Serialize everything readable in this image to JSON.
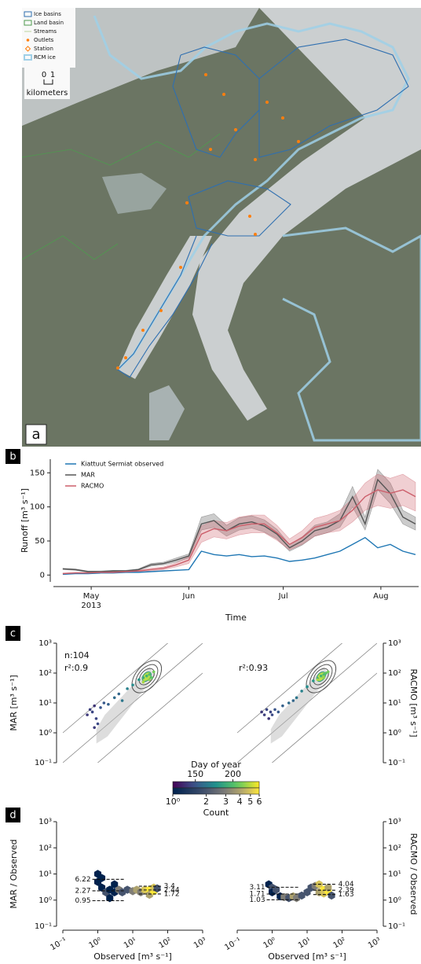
{
  "panel_labels": [
    "a",
    "b",
    "c",
    "d"
  ],
  "map": {
    "legend": [
      "Ice basins",
      "Land basin",
      "Streams",
      "Outlets",
      "Station",
      "RCM ice"
    ],
    "scale_bar": {
      "ticks": [
        "0",
        "1"
      ],
      "unit": "kilometers"
    }
  },
  "chart_data": [
    {
      "type": "line",
      "ylabel": "Runoff [m³ s⁻¹]",
      "xlabel": "Time",
      "legend": "upper left",
      "x": [
        112,
        116,
        120,
        124,
        128,
        132,
        136,
        140,
        144,
        148,
        152,
        156,
        160,
        164,
        168,
        172,
        176,
        180,
        184,
        188,
        192,
        196,
        200,
        204,
        208,
        212,
        216,
        220,
        224
      ],
      "xlim": [
        109,
        225
      ],
      "xticks": [
        {
          "value": 121,
          "label": "May"
        },
        {
          "value": 152,
          "label": "Jun"
        },
        {
          "value": 182,
          "label": "Jul"
        },
        {
          "value": 213,
          "label": "Aug"
        }
      ],
      "xtick_sublabel": "2013",
      "ylim": [
        -10,
        170
      ],
      "yticks": [
        0,
        50,
        100,
        150
      ],
      "series": [
        {
          "name": "Kiattuut Sermiat observed",
          "color": "#1f77b4",
          "values": [
            1,
            2,
            2,
            3,
            3,
            4,
            4,
            5,
            6,
            7,
            8,
            35,
            30,
            28,
            30,
            27,
            28,
            25,
            20,
            22,
            25,
            30,
            35,
            45,
            55,
            40,
            45,
            35,
            30
          ]
        },
        {
          "name": "MAR",
          "color": "#555555",
          "values": [
            9,
            8,
            5,
            5,
            6,
            6,
            8,
            15,
            17,
            22,
            28,
            75,
            80,
            65,
            75,
            78,
            72,
            60,
            40,
            50,
            65,
            70,
            80,
            115,
            75,
            140,
            120,
            85,
            75
          ],
          "upper": [
            10,
            9,
            6,
            6,
            7,
            7,
            9,
            17,
            19,
            25,
            31,
            85,
            90,
            73,
            84,
            87,
            81,
            67,
            45,
            56,
            73,
            78,
            90,
            130,
            85,
            155,
            135,
            95,
            85
          ],
          "lower": [
            8,
            7,
            4,
            4,
            5,
            5,
            7,
            13,
            15,
            19,
            25,
            66,
            70,
            57,
            66,
            69,
            63,
            53,
            35,
            44,
            57,
            62,
            70,
            100,
            66,
            125,
            105,
            75,
            66
          ]
        },
        {
          "name": "RACMO",
          "color": "#cc5f6b",
          "values": [
            2,
            3,
            3,
            4,
            4,
            5,
            6,
            8,
            10,
            15,
            22,
            60,
            68,
            65,
            72,
            75,
            75,
            62,
            45,
            55,
            70,
            75,
            80,
            95,
            115,
            125,
            120,
            125,
            115
          ],
          "upper": [
            3,
            4,
            4,
            5,
            5,
            6,
            7,
            10,
            12,
            18,
            27,
            72,
            80,
            77,
            85,
            88,
            88,
            73,
            53,
            65,
            83,
            88,
            95,
            112,
            135,
            148,
            142,
            148,
            136
          ],
          "lower": [
            1,
            2,
            2,
            3,
            3,
            4,
            5,
            6,
            8,
            12,
            17,
            48,
            56,
            53,
            59,
            62,
            62,
            51,
            37,
            45,
            57,
            62,
            65,
            78,
            95,
            102,
            98,
            102,
            94
          ]
        }
      ]
    },
    {
      "type": "scatter",
      "log": true,
      "yaxis": "left",
      "ylabel": "MAR [m³ s⁻¹]",
      "annotations": [
        "n:104",
        "r²:0.9"
      ],
      "colorbar": 0,
      "xlim": [
        0.1,
        1000
      ],
      "ylim": [
        0.1,
        1000
      ],
      "ratio_lines": [
        0.1,
        1,
        10
      ],
      "yticks": [
        {
          "value": 0.1,
          "label": "10⁻¹"
        },
        {
          "value": 1,
          "label": "10⁰"
        },
        {
          "value": 10,
          "label": "10¹"
        },
        {
          "value": 100,
          "label": "10²"
        },
        {
          "value": 1000,
          "label": "10³"
        }
      ],
      "x": [
        0.5,
        0.6,
        0.7,
        0.8,
        0.9,
        1.0,
        0.8,
        1.2,
        1.5,
        2,
        3,
        4,
        5,
        7,
        10,
        15,
        20,
        25,
        30,
        35,
        40,
        30,
        20
      ],
      "y": [
        4,
        6,
        5,
        8,
        3,
        2,
        1.5,
        7,
        10,
        9,
        15,
        20,
        12,
        30,
        40,
        60,
        70,
        80,
        90,
        70,
        110,
        60,
        50
      ],
      "day": [
        140,
        142,
        145,
        138,
        144,
        146,
        141,
        150,
        152,
        155,
        160,
        158,
        165,
        170,
        175,
        180,
        190,
        195,
        200,
        205,
        210,
        215,
        220
      ]
    },
    {
      "type": "scatter",
      "log": true,
      "yaxis": "right",
      "ylabel": "RACMO [m³ s⁻¹]",
      "annotations": [
        "r²:0.93"
      ],
      "colorbar": 0,
      "xlim": [
        0.1,
        1000
      ],
      "ylim": [
        0.1,
        1000
      ],
      "ratio_lines": [
        0.1,
        1,
        10
      ],
      "yticks": [
        {
          "value": 0.1,
          "label": "10⁻¹"
        },
        {
          "value": 1,
          "label": "10⁰"
        },
        {
          "value": 10,
          "label": "10¹"
        },
        {
          "value": 100,
          "label": "10²"
        },
        {
          "value": 1000,
          "label": "10³"
        }
      ],
      "x": [
        0.5,
        0.6,
        0.7,
        0.8,
        0.9,
        1.0,
        1.2,
        1.5,
        2,
        3,
        4,
        5,
        7,
        10,
        15,
        20,
        25,
        30,
        35,
        40,
        30,
        20
      ],
      "y": [
        5,
        4,
        6,
        3,
        5,
        4,
        6,
        5,
        8,
        10,
        12,
        15,
        25,
        35,
        55,
        65,
        80,
        90,
        100,
        110,
        70,
        60
      ],
      "day": [
        140,
        142,
        145,
        138,
        144,
        146,
        150,
        152,
        155,
        160,
        158,
        165,
        170,
        175,
        180,
        190,
        195,
        200,
        205,
        210,
        215,
        220
      ]
    },
    {
      "type": "hexbin",
      "log": true,
      "yaxis": "left",
      "ylabel": "MAR / Observed",
      "xlabel": "Observed [m³ s⁻¹]",
      "colorbar": 1,
      "xlim": [
        0.1,
        1000
      ],
      "ylim": [
        0.1,
        1000
      ],
      "xticks": [
        {
          "value": 0.1,
          "label": "10⁻¹"
        },
        {
          "value": 1,
          "label": "10⁰"
        },
        {
          "value": 10,
          "label": "10¹"
        },
        {
          "value": 100,
          "label": "10²"
        },
        {
          "value": 1000,
          "label": "10³"
        }
      ],
      "yticks": [
        {
          "value": 0.1,
          "label": "10⁻¹"
        },
        {
          "value": 1,
          "label": "10⁰"
        },
        {
          "value": 10,
          "label": "10¹"
        },
        {
          "value": 100,
          "label": "10²"
        },
        {
          "value": 1000,
          "label": "10³"
        }
      ],
      "x": [
        1,
        1,
        1.3,
        1.3,
        1.7,
        2.2,
        2.2,
        3,
        3,
        4,
        5,
        7,
        10,
        13,
        17,
        22,
        30,
        30,
        40,
        40,
        50
      ],
      "y": [
        10,
        5,
        7,
        3,
        2,
        1.2,
        2.5,
        2,
        4,
        2.5,
        2,
        2.5,
        2.2,
        2.5,
        2,
        2.5,
        2.5,
        1.6,
        2.2,
        3,
        2.8
      ],
      "counts": [
        1,
        1,
        1,
        1,
        2,
        1,
        1,
        1,
        1,
        3,
        2,
        2,
        3,
        4,
        3,
        5,
        6,
        4,
        6,
        5,
        2
      ],
      "quantile_lines": [
        {
          "xlim": [
            0.7,
            6
          ],
          "label_side": "left",
          "values": [
            6.22,
            2.27,
            0.95
          ]
        },
        {
          "xlim": [
            15,
            70
          ],
          "label_side": "right",
          "values": [
            3.4,
            2.44,
            1.72
          ]
        }
      ]
    },
    {
      "type": "hexbin",
      "log": true,
      "yaxis": "right",
      "ylabel": "RACMO / Observed",
      "xlabel": "Observed [m³ s⁻¹]",
      "colorbar": 1,
      "xlim": [
        0.1,
        1000
      ],
      "ylim": [
        0.1,
        1000
      ],
      "xticks": [
        {
          "value": 0.1,
          "label": "10⁻¹"
        },
        {
          "value": 1,
          "label": "10⁰"
        },
        {
          "value": 10,
          "label": "10¹"
        },
        {
          "value": 100,
          "label": "10²"
        },
        {
          "value": 1000,
          "label": "10³"
        }
      ],
      "yticks": [
        {
          "value": 0.1,
          "label": "10⁻¹"
        },
        {
          "value": 1,
          "label": "10⁰"
        },
        {
          "value": 10,
          "label": "10¹"
        },
        {
          "value": 100,
          "label": "10²"
        },
        {
          "value": 1000,
          "label": "10³"
        }
      ],
      "x": [
        0.8,
        1,
        1,
        1.3,
        1.7,
        2.2,
        3,
        4,
        5,
        7,
        10,
        13,
        17,
        22,
        22,
        30,
        30,
        40,
        40,
        50
      ],
      "y": [
        4,
        3,
        2,
        2.5,
        1.4,
        1.3,
        1.2,
        1.4,
        1.2,
        1.5,
        2,
        3,
        3.5,
        4,
        2,
        2.5,
        1.8,
        2.2,
        3,
        1.5
      ],
      "counts": [
        1,
        2,
        1,
        2,
        1,
        3,
        2,
        4,
        3,
        2,
        2,
        2,
        3,
        5,
        4,
        6,
        5,
        6,
        4,
        2
      ],
      "quantile_lines": [
        {
          "xlim": [
            0.7,
            6
          ],
          "label_side": "left",
          "values": [
            3.11,
            1.71,
            1.03
          ]
        },
        {
          "xlim": [
            15,
            70
          ],
          "label_side": "right",
          "values": [
            4.04,
            2.39,
            1.63
          ]
        }
      ]
    }
  ],
  "colorbars": [
    {
      "title": "Day of year",
      "colormap": "viridis",
      "log": false,
      "lim": [
        120,
        235
      ],
      "ticks": [
        150,
        200
      ]
    },
    {
      "title": "Count",
      "colormap": "cividis",
      "log": true,
      "lim": [
        1,
        6
      ],
      "ticks": [
        {
          "value": 1,
          "label": "10⁰"
        },
        2,
        3,
        4,
        5,
        6
      ]
    }
  ]
}
